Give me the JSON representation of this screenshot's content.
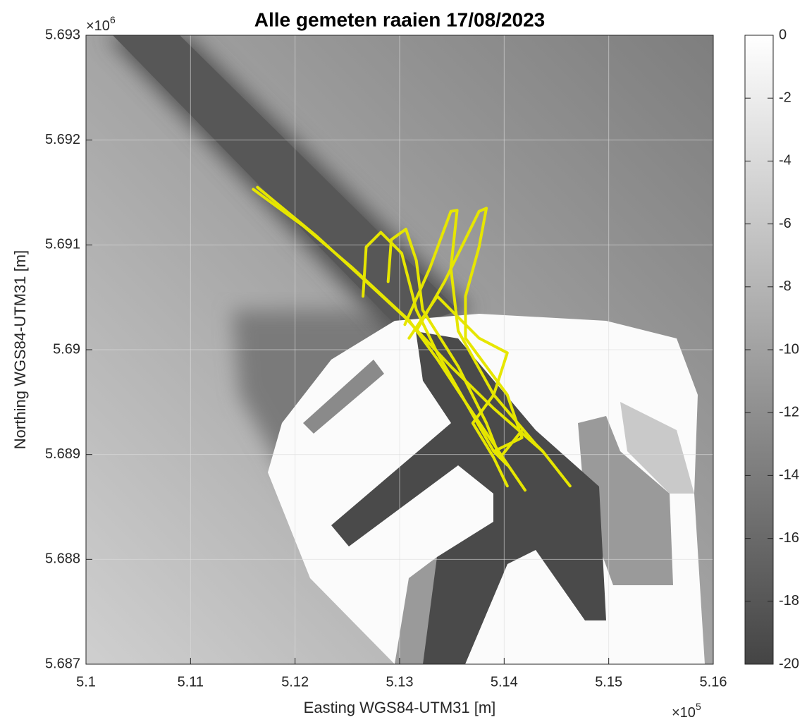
{
  "chart_data": {
    "type": "line",
    "title": "Alle gemeten raaien 17/08/2023",
    "xlabel": "Easting WGS84-UTM31 [m]",
    "ylabel": "Northing WGS84-UTM31 [m]",
    "x_exponent": {
      "base": "×10",
      "power": "5"
    },
    "y_exponent": {
      "base": "×10",
      "power": "6"
    },
    "xlim": [
      5.1,
      5.16
    ],
    "xticks": [
      5.1,
      5.11,
      5.12,
      5.13,
      5.14,
      5.15,
      5.16
    ],
    "ylim": [
      5.687,
      5.693
    ],
    "yticks": [
      5.687,
      5.688,
      5.689,
      5.69,
      5.691,
      5.692,
      5.693
    ],
    "grid": true,
    "color": "#e6e600",
    "colorbar": {
      "lim": [
        -20,
        0
      ],
      "ticks": [
        -20,
        -18,
        -16,
        -14,
        -12,
        -10,
        -8,
        -6,
        -4,
        -2,
        0
      ]
    },
    "series": [
      {
        "x": [
          5.116,
          5.1208,
          5.1255,
          5.1309,
          5.1336,
          5.1363,
          5.139,
          5.142
        ],
        "values": [
          5.69153,
          5.69118,
          5.69078,
          5.69028,
          5.68991,
          5.6895,
          5.6891,
          5.68866
        ]
      },
      {
        "x": [
          5.1164,
          5.1221,
          5.1268,
          5.1305,
          5.1349,
          5.139,
          5.1437,
          5.1463
        ],
        "values": [
          5.69155,
          5.69108,
          5.69065,
          5.69031,
          5.68984,
          5.68944,
          5.68903,
          5.6887
        ]
      },
      {
        "x": [
          5.1265,
          5.1268,
          5.1282,
          5.1302,
          5.1316,
          5.1336,
          5.1363,
          5.139,
          5.1403
        ],
        "values": [
          5.69051,
          5.69098,
          5.69112,
          5.69092,
          5.69038,
          5.68997,
          5.6895,
          5.68903,
          5.6889
        ]
      },
      {
        "x": [
          5.1289,
          5.1292,
          5.1306,
          5.1316,
          5.1322,
          5.1356,
          5.1383,
          5.1396,
          5.1417
        ],
        "values": [
          5.69065,
          5.69105,
          5.69115,
          5.69085,
          5.69038,
          5.68984,
          5.6893,
          5.68897,
          5.68923
        ]
      },
      {
        "x": [
          5.1305,
          5.1329,
          5.1349,
          5.1355,
          5.1349,
          5.1356,
          5.139,
          5.143,
          5.1437
        ],
        "values": [
          5.69024,
          5.69078,
          5.69132,
          5.69133,
          5.69078,
          5.69018,
          5.68957,
          5.6891,
          5.68903
        ]
      },
      {
        "x": [
          5.1316,
          5.1343,
          5.1376,
          5.1383,
          5.1376,
          5.1363,
          5.1363,
          5.1403,
          5.1417,
          5.139
        ],
        "values": [
          5.69018,
          5.69065,
          5.69132,
          5.69135,
          5.69098,
          5.69051,
          5.69011,
          5.68957,
          5.68916,
          5.68903
        ]
      },
      {
        "x": [
          5.1309,
          5.1336,
          5.1376,
          5.1403,
          5.139,
          5.137,
          5.139,
          5.1403
        ],
        "values": [
          5.69011,
          5.69051,
          5.69011,
          5.68997,
          5.68957,
          5.6893,
          5.68897,
          5.6887
        ]
      }
    ]
  }
}
